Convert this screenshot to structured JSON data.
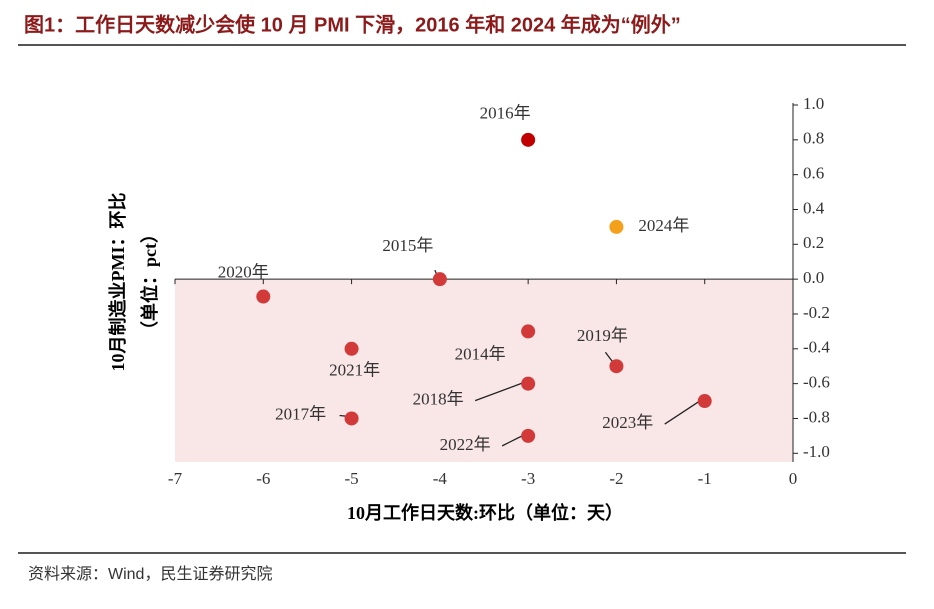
{
  "chart_data": {
    "type": "scatter",
    "title": "图1：工作日天数减少会使 10 月 PMI 下滑，2016 年和 2024 年成为“例外”",
    "x_label": "10月工作日天数:环比（单位：天）",
    "y_label": [
      "10月制造业PMI：环比",
      "（单位：pct）"
    ],
    "source": "资料来源：Wind，民生证券研究院",
    "point_labels": [
      "2016年",
      "2024年",
      "2015年",
      "2020年",
      "2014年",
      "2021年",
      "2019年",
      "2018年",
      "2017年",
      "2023年",
      "2022年"
    ],
    "x": [
      -3,
      -2,
      -4,
      -6,
      -3,
      -5,
      -2,
      -3,
      -5,
      -1,
      -3
    ],
    "values": [
      0.8,
      0.3,
      0.0,
      -0.1,
      -0.3,
      -0.4,
      -0.5,
      -0.6,
      -0.8,
      -0.7,
      -0.9
    ],
    "colors": [
      "#c00000",
      "#f5a01a",
      "#d23a3a",
      "#d23a3a",
      "#d23a3a",
      "#d23a3a",
      "#d23a3a",
      "#d23a3a",
      "#d23a3a",
      "#d23a3a",
      "#d23a3a"
    ],
    "xlim": [
      -7,
      0
    ],
    "xticks": [
      -7,
      -6,
      -5,
      -4,
      -3,
      -2,
      -1,
      0
    ],
    "ylim": [
      -1.05,
      1.0
    ],
    "yticks": [
      {
        "value": 1.0,
        "label": "1.0"
      },
      {
        "value": 0.8,
        "label": "0.8"
      },
      {
        "value": 0.6,
        "label": "0.6"
      },
      {
        "value": 0.4,
        "label": "0.4"
      },
      {
        "value": 0.2,
        "label": "0.2"
      },
      {
        "value": 0.0,
        "label": "0.0"
      },
      {
        "value": -0.2,
        "label": "-0.2"
      },
      {
        "value": -0.4,
        "label": "-0.4"
      },
      {
        "value": -0.6,
        "label": "-0.6"
      },
      {
        "value": -0.8,
        "label": "-0.8"
      },
      {
        "value": -1.0,
        "label": "-1.0"
      }
    ],
    "shade_color": "#f9e6e6"
  }
}
